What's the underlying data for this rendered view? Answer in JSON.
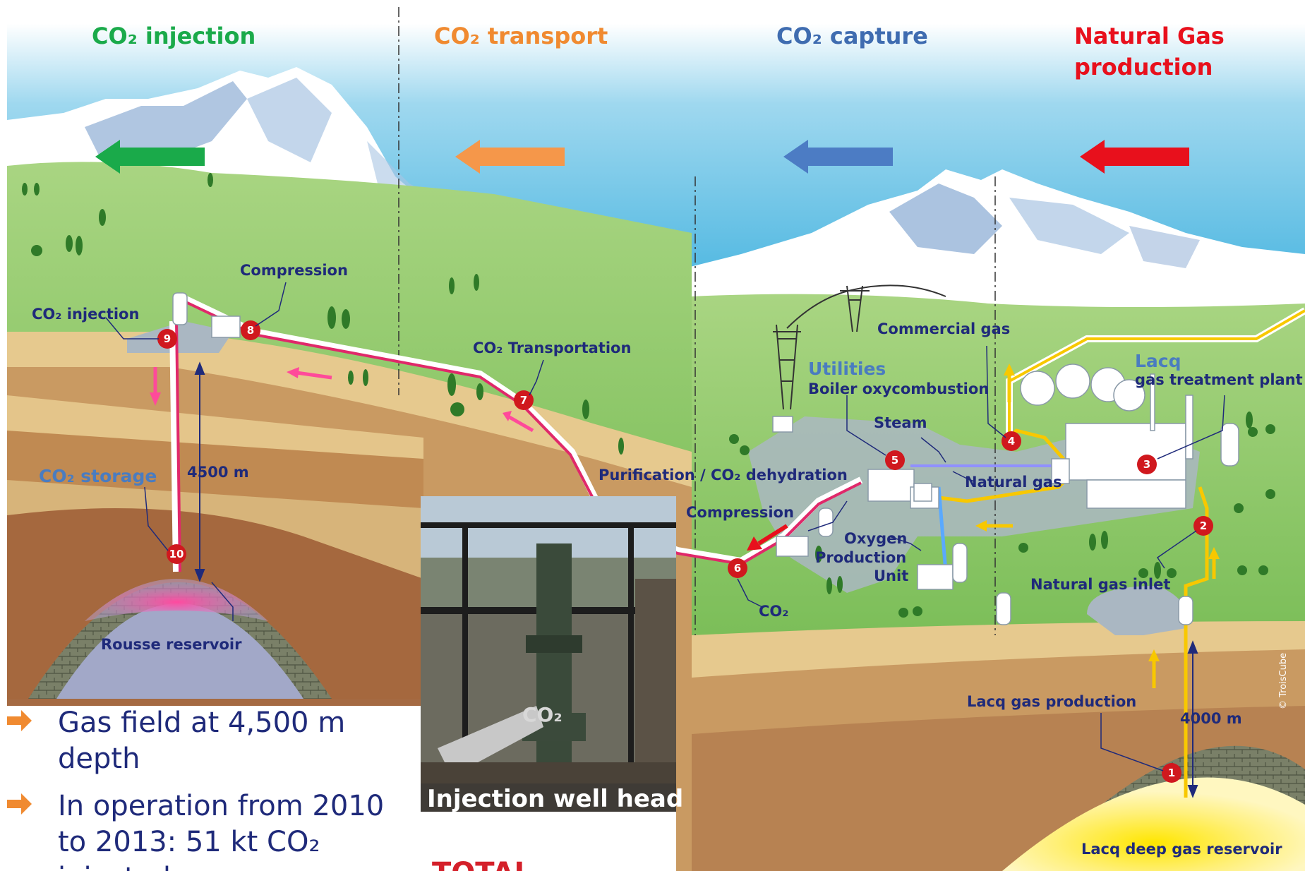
{
  "headers": {
    "injection": "CO₂ injection",
    "transport": "CO₂ transport",
    "capture": "CO₂ capture",
    "gas_line1": "Natural Gas",
    "gas_line2": "production"
  },
  "labels": {
    "compression_left": "Compression",
    "co2_injection": "CO₂ injection",
    "co2_storage": "CO₂ storage",
    "depth_left": "4500 m",
    "rousse": "Rousse reservoir",
    "co2_transportation": "CO₂ Transportation",
    "purification": "Purification /  CO₂ dehydration",
    "compression_mid": "Compression",
    "co2_out": "CO₂",
    "oxygen1": "Oxygen",
    "oxygen2": "Production",
    "oxygen3": "Unit",
    "commercial_gas": "Commercial gas",
    "utilities": "Utilities",
    "boiler": "Boiler oxycombustion",
    "steam": "Steam",
    "natural_gas": "Natural gas",
    "lacq1": "Lacq",
    "lacq2": "gas treatment plant",
    "natural_gas_inlet": "Natural gas inlet",
    "lacq_production": "Lacq gas production",
    "depth_right": "4000 m",
    "lacq_reservoir": "Lacq deep gas reservoir",
    "photo_caption": "Injection well head",
    "photo_co2": "CO₂",
    "credit": "© TroisCube",
    "brand": "TOTAL"
  },
  "numbers": [
    "1",
    "2",
    "3",
    "4",
    "5",
    "6",
    "7",
    "8",
    "9",
    "10"
  ],
  "bullets": {
    "b1_line1": "Gas field at 4,500 m",
    "b1_line2": "depth",
    "b2_line1": "In operation from 2010",
    "b2_line2": "to 2013: 51 kt CO₂",
    "b2_line3": "injected"
  },
  "colors": {
    "injection": "#1aaa4a",
    "transport": "#f08a30",
    "capture": "#3f6cb0",
    "gas": "#e8101c"
  },
  "icons": [
    "arrow-left-icon",
    "bullet-arrow-icon",
    "pylon-icon",
    "tree-icon"
  ]
}
